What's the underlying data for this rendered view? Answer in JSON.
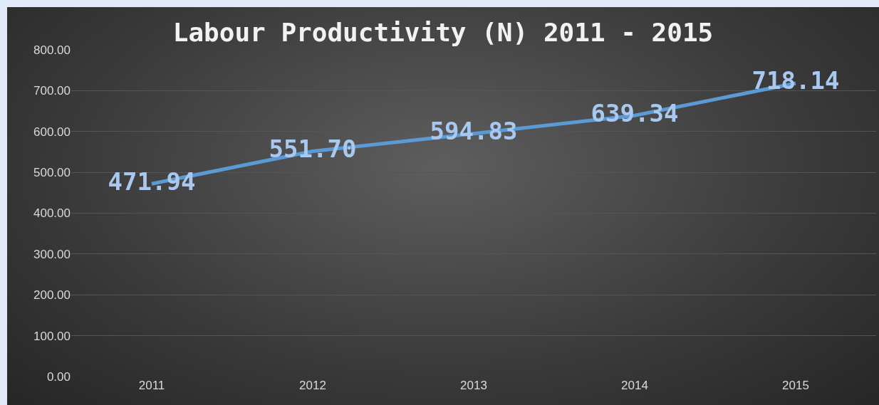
{
  "chart_data": {
    "type": "line",
    "title": "Labour Productivity (N) 2011 - 2015",
    "categories": [
      "2011",
      "2012",
      "2013",
      "2014",
      "2015"
    ],
    "series": [
      {
        "color": "#5b9bd5",
        "values": [
          471.94,
          551.7,
          594.83,
          639.34,
          718.14
        ],
        "value_labels": [
          "471.94",
          "551.70",
          "594.83",
          "639.34",
          "718.14"
        ]
      }
    ],
    "ylim": [
      0,
      800
    ],
    "yticks": [
      {
        "value": 0,
        "label": "0.00"
      },
      {
        "value": 100,
        "label": "100.00"
      },
      {
        "value": 200,
        "label": "200.00"
      },
      {
        "value": 300,
        "label": "300.00"
      },
      {
        "value": 400,
        "label": "400.00"
      },
      {
        "value": 500,
        "label": "500.00"
      },
      {
        "value": 600,
        "label": "600.00"
      },
      {
        "value": 700,
        "label": "700.00"
      },
      {
        "value": 800,
        "label": "800.00"
      }
    ],
    "grid": "y",
    "legend": false,
    "marker": "none",
    "line_style": "solid"
  }
}
